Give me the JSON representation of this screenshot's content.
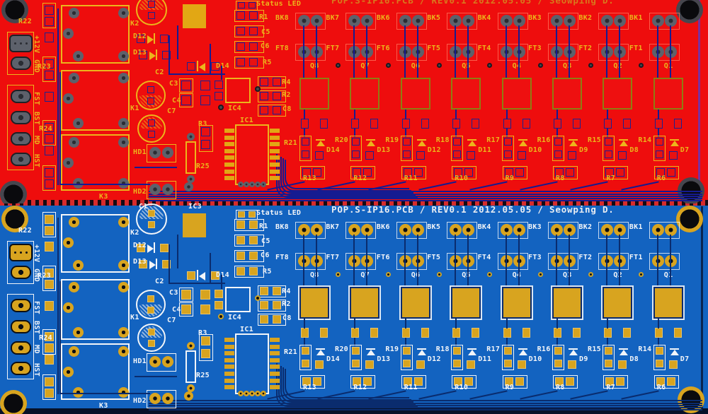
{
  "title": "POP.S-IP16.PCB / REV0.1 2012.05.05 / Seowping D.",
  "status_led": "Status LED",
  "top_partial": {
    "c1": "C1",
    "ic3": "IC3"
  },
  "boards": [
    {
      "id": "top",
      "scheme": "red"
    },
    {
      "id": "bottom",
      "scheme": "blue"
    }
  ],
  "colors": {
    "red_mask": "#ee0d0d",
    "red_silk": "#ecb51b",
    "red_trace": "#151b91",
    "red_title": "#d8791d",
    "red_gold": "#e2a714",
    "gray_pad": "#5d616b",
    "blue_mask": "#1363c0",
    "blue_silk": "#f2f5f9",
    "blue_trace": "#0a2c6e",
    "blue_title": "#e9edf3",
    "blue_gold": "#d8a41f"
  },
  "channels": {
    "bk": [
      "BK8",
      "BK7",
      "BK6",
      "BK5",
      "BK4",
      "BK3",
      "BK2",
      "BK1"
    ],
    "ft": [
      "FT8",
      "FT7",
      "FT6",
      "FT5",
      "FT4",
      "FT3",
      "FT2",
      "FT1"
    ],
    "q": [
      "Q8",
      "Q7",
      "Q6",
      "Q5",
      "Q4",
      "Q3",
      "Q2",
      "Q1"
    ],
    "r_top": [
      "R20",
      "R19",
      "R18",
      "R17",
      "R16",
      "R15",
      "R14"
    ],
    "r_top_left": "R21",
    "d": [
      "D14",
      "D13",
      "D12",
      "D11",
      "D10",
      "D9",
      "D8",
      "D7"
    ],
    "r_bottom": [
      "R13",
      "R12",
      "R11",
      "R10",
      "R9",
      "R8",
      "R7",
      "R6"
    ]
  },
  "left": {
    "r22": "R22",
    "p12v": "+12V",
    "gnd": "GND",
    "r23": "R23",
    "fst": "FST",
    "bst": "BST",
    "r24": "R24",
    "md": "MD",
    "hst": "HST",
    "k2": "K2",
    "k1": "K1",
    "k3": "K3",
    "d12": "D12",
    "d13": "D13",
    "d14": "D14",
    "c2": "C2",
    "c3": "C3",
    "c4": "C4",
    "c7": "C7",
    "hd1": "HD1",
    "hd2": "HD2",
    "ic1": "IC1",
    "ic4": "IC4",
    "r3": "R3",
    "r25": "R25"
  },
  "mid": {
    "r1": "R1",
    "c5": "C5",
    "c6": "C6",
    "r5": "R5",
    "r4": "R4",
    "r2": "R2",
    "c8": "C8"
  }
}
